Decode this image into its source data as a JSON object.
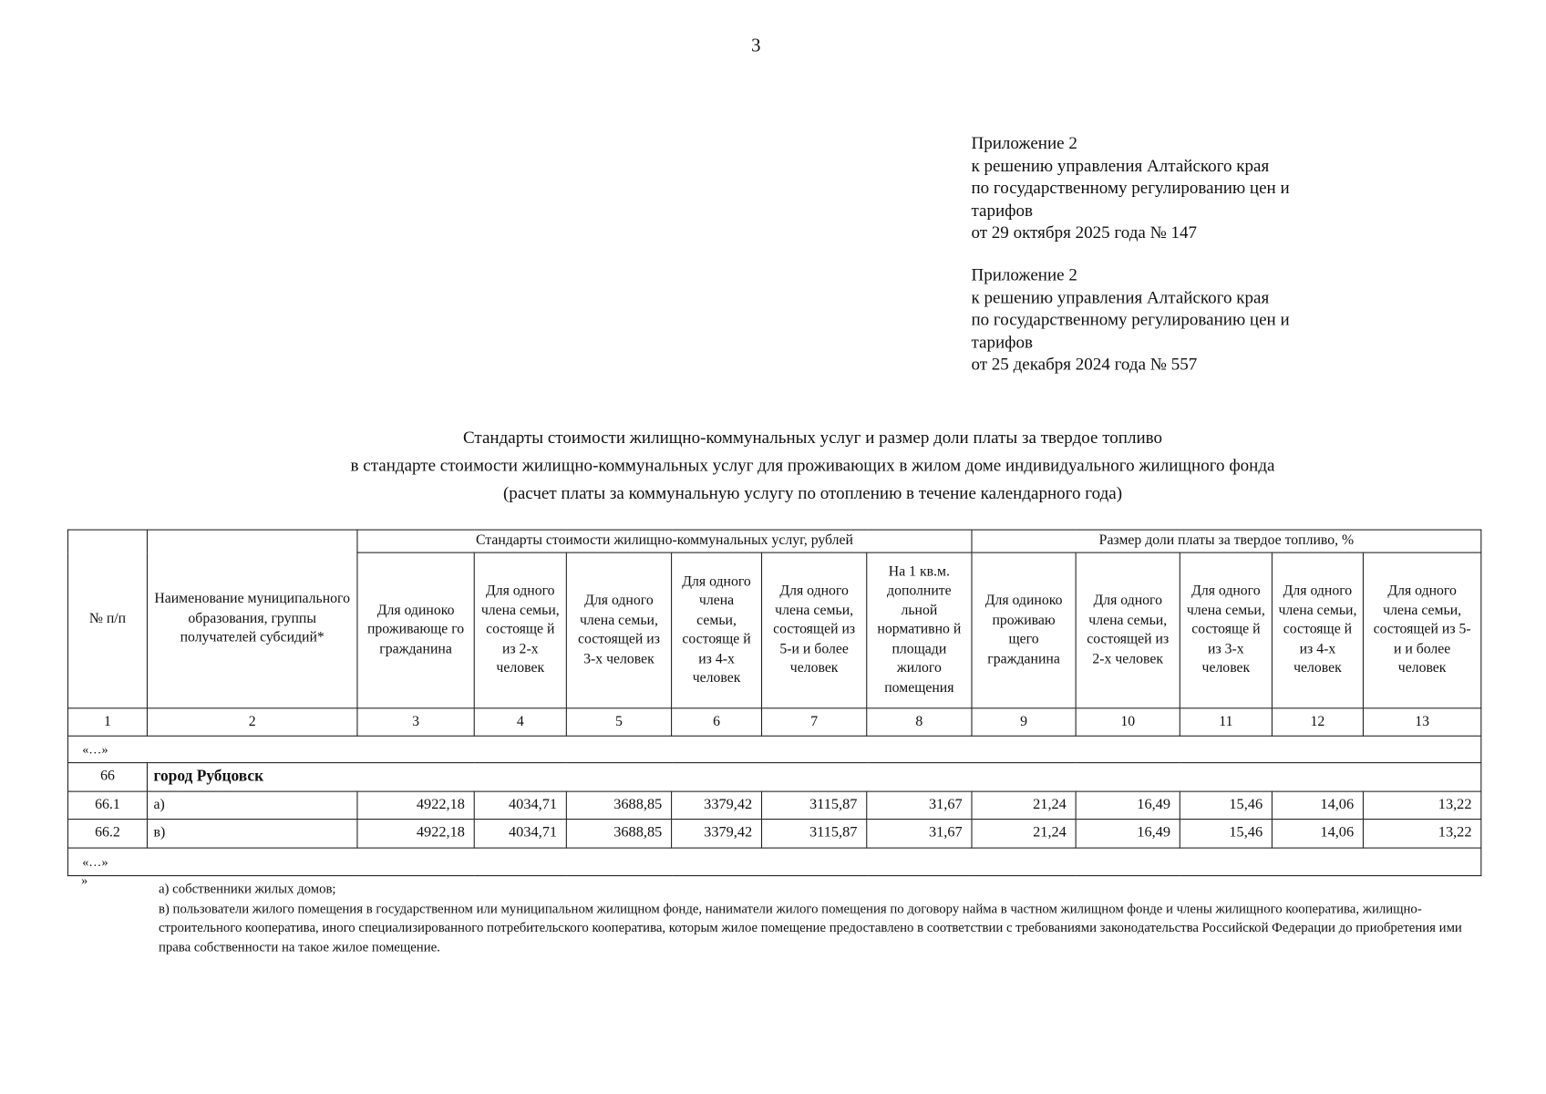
{
  "page_number": "3",
  "appendix_current": [
    "Приложение 2",
    "к решению управления Алтайского края",
    "по государственному регулированию цен и",
    "тарифов",
    "от 29 октября 2025 года № 147"
  ],
  "appendix_previous": [
    "Приложение 2",
    "к решению управления Алтайского края",
    "по государственному регулированию цен и",
    "тарифов",
    "от 25 декабря 2024 года № 557"
  ],
  "title": [
    "Стандарты стоимости жилищно-коммунальных услуг и размер доли платы за твердое топливо",
    "в стандарте стоимости жилищно-коммунальных услуг для проживающих в жилом доме индивидуального жилищного фонда",
    "(расчет платы за коммунальную услугу по отоплению в течение календарного года)"
  ],
  "table": {
    "col_no": "№ п/п",
    "col_name": "Наименование муниципального образования, группы получателей субсидий*",
    "group_standards": "Стандарты стоимости жилищно-коммунальных услуг, рублей",
    "group_share": "Размер доли платы за твердое топливо, %",
    "sub_headers": [
      "Для одиноко проживающе го гражданина",
      "Для одного члена семьи, состояще й из 2-х человек",
      "Для одного члена семьи, состоящей из 3-х человек",
      "Для одного члена семьи, состояще й из 4-х человек",
      "Для одного члена семьи, состоящей из 5-и и более человек",
      "На 1 кв.м. дополните льной нормативно й площади жилого помещения",
      "Для одиноко проживаю щего гражданина",
      "Для одного члена семьи, состоящей из 2-х человек",
      "Для одного члена семьи, состояще й из 3-х человек",
      "Для одного члена семьи, состояще й из 4-х человек",
      "Для одного члена семьи, состоящей из 5-и и более человек"
    ],
    "col_numbers": [
      "1",
      "2",
      "3",
      "4",
      "5",
      "6",
      "7",
      "8",
      "9",
      "10",
      "11",
      "12",
      "13"
    ],
    "ellipsis": "«…»",
    "group_row": {
      "no": "66",
      "name": "город Рубцовск"
    },
    "rows": [
      {
        "no": "66.1",
        "name": "а)",
        "values": [
          "4922,18",
          "4034,71",
          "3688,85",
          "3379,42",
          "3115,87",
          "31,67",
          "21,24",
          "16,49",
          "15,46",
          "14,06",
          "13,22"
        ]
      },
      {
        "no": "66.2",
        "name": "в)",
        "values": [
          "4922,18",
          "4034,71",
          "3688,85",
          "3379,42",
          "3115,87",
          "31,67",
          "21,24",
          "16,49",
          "15,46",
          "14,06",
          "13,22"
        ]
      }
    ]
  },
  "footnote_mark": "»",
  "footnotes": [
    "а) собственники жилых  домов;",
    "в) пользователи жилого помещения в государственном или муниципальном жилищном фонде, наниматели жилого помещения по договору найма в частном жилищном фонде и члены жилищного кооператива, жилищно-строительного кооператива, иного специализированного потребительского кооператива, которым жилое помещение предоставлено в соответствии с требованиями законодательства Российской Федерации до приобретения ими права собственности на такое жилое помещение."
  ]
}
